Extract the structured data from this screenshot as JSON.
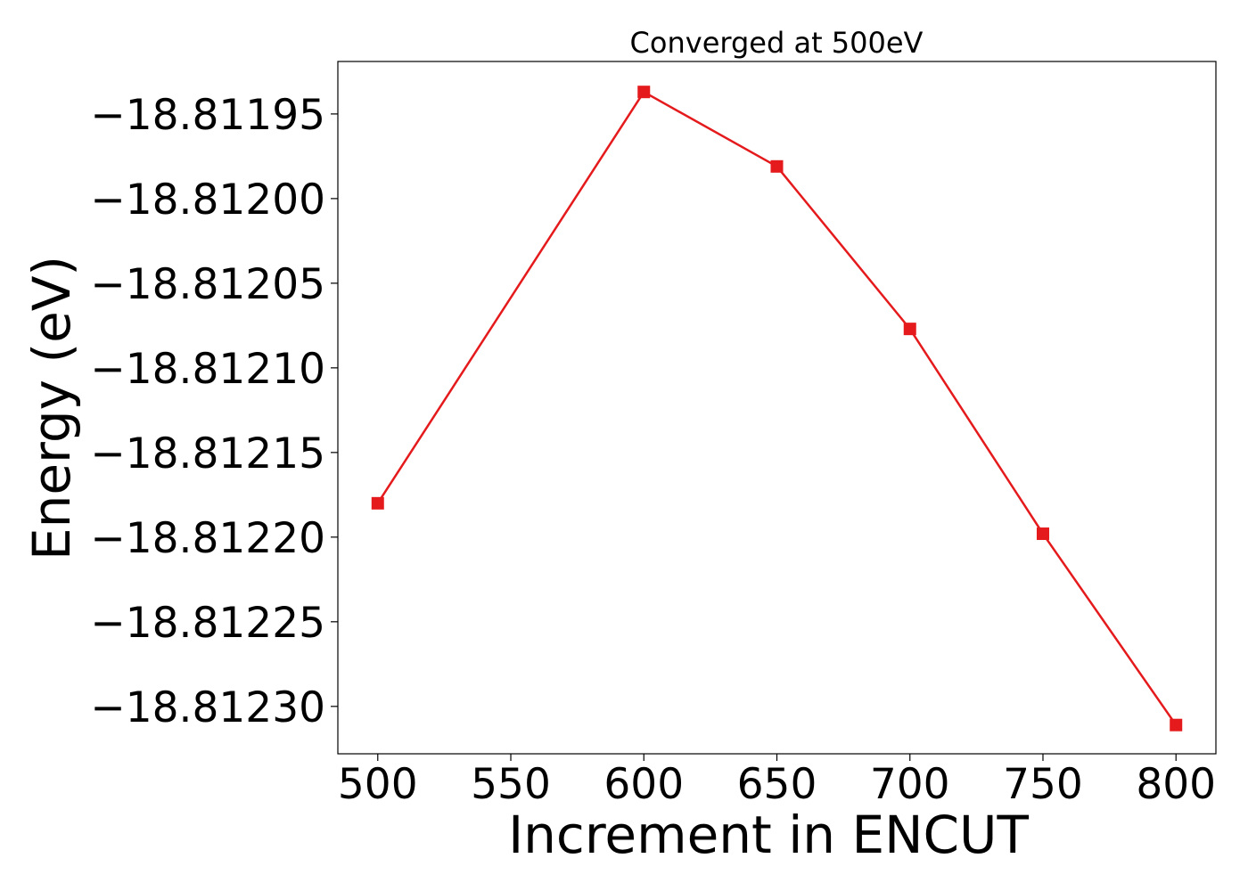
{
  "chart_data": {
    "type": "line",
    "title": "Converged at 500eV",
    "xlabel": "Increment in ENCUT",
    "ylabel": "Energy (eV)",
    "x": [
      500,
      600,
      650,
      700,
      750,
      800
    ],
    "series": [
      {
        "values": [
          -18.81218,
          -18.811937,
          -18.811981,
          -18.812077,
          -18.812198,
          -18.812311
        ],
        "color": "#e41a1c",
        "marker": "square"
      }
    ],
    "xlim": [
      485,
      815
    ],
    "ylim": [
      -18.812328,
      -18.811919
    ],
    "xticks": [
      500,
      550,
      600,
      650,
      700,
      750,
      800
    ],
    "xtick_labels": [
      "500",
      "550",
      "600",
      "650",
      "700",
      "750",
      "800"
    ],
    "yticks": [
      -18.81195,
      -18.812,
      -18.81205,
      -18.8121,
      -18.81215,
      -18.8122,
      -18.81225,
      -18.8123
    ],
    "ytick_labels": [
      "−18.81195",
      "−18.81200",
      "−18.81205",
      "−18.81210",
      "−18.81215",
      "−18.81220",
      "−18.81225",
      "−18.81230"
    ],
    "grid": false,
    "legend": false
  }
}
